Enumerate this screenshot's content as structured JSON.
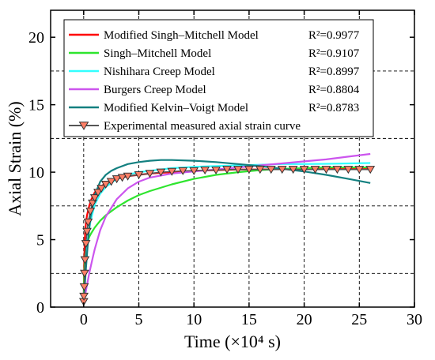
{
  "chart_data": {
    "type": "line",
    "title": "",
    "xlabel": "Time (×10⁴ s)",
    "ylabel": "Axial Strain (%)",
    "xlim": [
      -3,
      30
    ],
    "ylim": [
      0,
      22
    ],
    "xticks": [
      0,
      5,
      10,
      15,
      20,
      25,
      30
    ],
    "yticks": [
      0,
      5,
      10,
      15,
      20
    ],
    "xtick_labels": [
      "0",
      "5",
      "10",
      "15",
      "20",
      "25",
      "30"
    ],
    "ytick_labels": [
      "0",
      "5",
      "10",
      "15",
      "20"
    ],
    "grid": "dashed",
    "gridlines_x": [
      0,
      5,
      10,
      15,
      20,
      25
    ],
    "gridlines_y": [
      2.5,
      7.5,
      12.5,
      17.5
    ],
    "legend_position": "top-left",
    "series": [
      {
        "name": "Modified Singh–Mitchell Model",
        "r2": "R²=0.9977",
        "color": "#ff0000",
        "x": [
          0,
          0.05,
          0.1,
          0.2,
          0.3,
          0.5,
          0.7,
          1,
          1.5,
          2,
          2.5,
          3,
          4,
          5,
          6,
          8,
          10,
          12,
          14,
          16,
          18,
          20,
          22,
          24,
          26
        ],
        "y": [
          0.5,
          3.5,
          5.0,
          6.2,
          6.8,
          7.5,
          8.0,
          8.5,
          8.9,
          9.2,
          9.4,
          9.5,
          9.7,
          9.8,
          9.9,
          10.0,
          10.1,
          10.15,
          10.2,
          10.2,
          10.22,
          10.24,
          10.25,
          10.25,
          10.26
        ]
      },
      {
        "name": "Singh–Mitchell Model",
        "r2": "R²=0.9107",
        "color": "#2ee52e",
        "x": [
          0,
          0.05,
          0.1,
          0.2,
          0.3,
          0.5,
          0.7,
          1,
          1.5,
          2,
          3,
          4,
          5,
          6,
          8,
          10,
          12,
          14,
          16,
          18,
          20,
          22,
          24,
          26
        ],
        "y": [
          0.5,
          2.5,
          3.5,
          4.3,
          4.7,
          5.2,
          5.5,
          5.9,
          6.4,
          6.8,
          7.4,
          7.9,
          8.3,
          8.6,
          9.1,
          9.5,
          9.8,
          10.0,
          10.15,
          10.25,
          10.3,
          10.35,
          10.35,
          10.35
        ]
      },
      {
        "name": "Nishihara Creep Model",
        "r2": "R²=0.8997",
        "color": "#33ffff",
        "x": [
          0,
          0.1,
          0.2,
          0.4,
          0.6,
          1,
          1.5,
          2,
          3,
          4,
          5,
          6,
          8,
          10,
          12,
          14,
          16,
          18,
          20,
          22,
          24,
          26
        ],
        "y": [
          0.3,
          2.0,
          3.5,
          5.2,
          6.3,
          7.6,
          8.4,
          8.9,
          9.5,
          9.8,
          10.0,
          10.1,
          10.3,
          10.4,
          10.45,
          10.5,
          10.55,
          10.6,
          10.6,
          10.62,
          10.65,
          10.68
        ]
      },
      {
        "name": "Burgers Creep Model",
        "r2": "R²=0.8804",
        "color": "#cc55ee",
        "x": [
          0,
          0.2,
          0.5,
          0.8,
          1,
          1.5,
          2,
          3,
          4,
          5,
          6,
          8,
          10,
          12,
          14,
          16,
          18,
          20,
          22,
          24,
          26
        ],
        "y": [
          0.3,
          1.2,
          2.5,
          3.6,
          4.3,
          5.7,
          6.7,
          8.0,
          8.8,
          9.3,
          9.6,
          9.9,
          10.05,
          10.2,
          10.35,
          10.5,
          10.65,
          10.8,
          10.95,
          11.15,
          11.35
        ]
      },
      {
        "name": "Modified Kelvin–Voigt Model",
        "r2": "R²=0.8783",
        "color": "#138080",
        "x": [
          0,
          0.2,
          0.4,
          0.6,
          1,
          1.5,
          2,
          2.5,
          3,
          4,
          5,
          6,
          7,
          8,
          10,
          12,
          14,
          16,
          18,
          20,
          22,
          24,
          26
        ],
        "y": [
          0.3,
          2.8,
          5.0,
          6.6,
          8.3,
          9.3,
          9.8,
          10.1,
          10.3,
          10.6,
          10.75,
          10.85,
          10.9,
          10.9,
          10.85,
          10.75,
          10.6,
          10.45,
          10.25,
          10.05,
          9.8,
          9.5,
          9.2
        ]
      },
      {
        "name": "Experimental measured axial strain curve",
        "color": "#555555",
        "marker": "triangle-down",
        "marker_fill": "#ff7f66",
        "x": [
          0,
          0.02,
          0.05,
          0.08,
          0.12,
          0.2,
          0.3,
          0.4,
          0.6,
          0.8,
          1,
          1.3,
          1.6,
          2,
          2.5,
          3,
          3.5,
          4,
          5,
          6,
          7,
          8,
          9,
          10,
          11,
          12,
          13,
          14,
          15,
          16,
          17,
          18,
          19,
          20,
          21,
          22,
          23,
          24,
          25,
          26
        ],
        "y": [
          0.4,
          0.8,
          1.5,
          2.5,
          3.5,
          4.7,
          5.6,
          6.3,
          7.1,
          7.7,
          8.1,
          8.5,
          8.8,
          9.1,
          9.3,
          9.5,
          9.6,
          9.7,
          9.8,
          9.9,
          10.0,
          10.05,
          10.1,
          10.1,
          10.15,
          10.15,
          10.2,
          10.2,
          10.2,
          10.2,
          10.2,
          10.2,
          10.2,
          10.2,
          10.2,
          10.2,
          10.2,
          10.2,
          10.2,
          10.2
        ]
      }
    ]
  }
}
